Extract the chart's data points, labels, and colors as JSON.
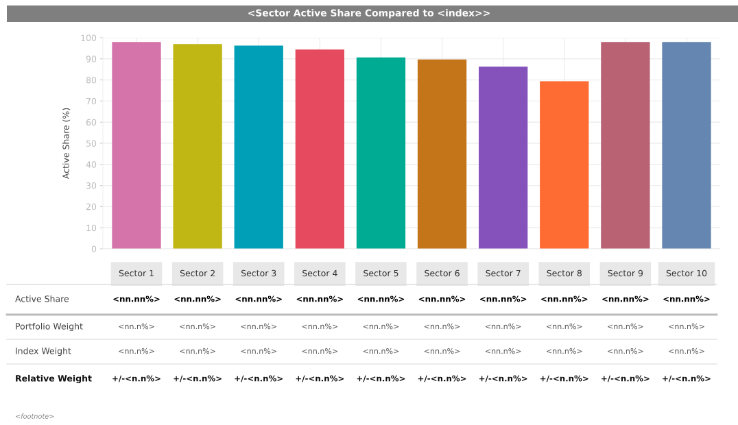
{
  "chart_data": {
    "type": "bar",
    "title": "<Sector Active Share Compared to <index>>",
    "ylabel": "Active Share (%)",
    "categories": [
      "Sector 1",
      "Sector 2",
      "Sector 3",
      "Sector 4",
      "Sector 5",
      "Sector 6",
      "Sector 7",
      "Sector 8",
      "Sector 9",
      "Sector 10"
    ],
    "values": [
      98,
      97,
      96.3,
      94.4,
      90.7,
      89.7,
      86.3,
      79.4,
      98,
      98
    ],
    "colors": [
      "#d474aa",
      "#c0b614",
      "#009fb8",
      "#e64a5e",
      "#00ab94",
      "#c47419",
      "#8552bc",
      "#ff6c33",
      "#b86273",
      "#6486b0"
    ],
    "value_labels": [
      "<nn.nn%>",
      "<nn.nn%>",
      "<nn.nn%>",
      "<nn.nn%>",
      "<nn.nn%>",
      "<nn.nn%>",
      "<nn.nn%>",
      "<nn.nn%>",
      "<nn.nn%>",
      "<nn.nn%>"
    ],
    "ylim": [
      0,
      100
    ],
    "yticks": [
      0,
      10,
      20,
      30,
      40,
      50,
      60,
      70,
      80,
      90,
      100
    ],
    "grid": true,
    "annotations": [
      "Active Share",
      "Portfolio Weight",
      "<nn.n%>",
      "<nn.n%>",
      "<nn.n%>",
      "<nn.n%>",
      "<nn.n%>",
      "<nn.n%>",
      "<nn.n%>",
      "<nn.n%>",
      "<nn.n%>",
      "<nn.n%>",
      "Index Weight",
      "<nn.n%>",
      "<nn.n%>",
      "<nn.n%>",
      "<nn.n%>",
      "<nn.n%>",
      "<nn.n%>",
      "<nn.n%>",
      "<nn.n%>",
      "<nn.n%>",
      "<nn.n%>",
      "Relative Weight",
      "+/-<n.n%>",
      "+/-<n.n%>",
      "+/-<n.n%>",
      "+/-<n.n%>",
      "+/-<n.n%>",
      "+/-<n.n%>",
      "+/-<n.n%>",
      "+/-<n.n%>",
      "+/-<n.n%>",
      "+/-<n.n%>",
      "<footnote>"
    ]
  }
}
